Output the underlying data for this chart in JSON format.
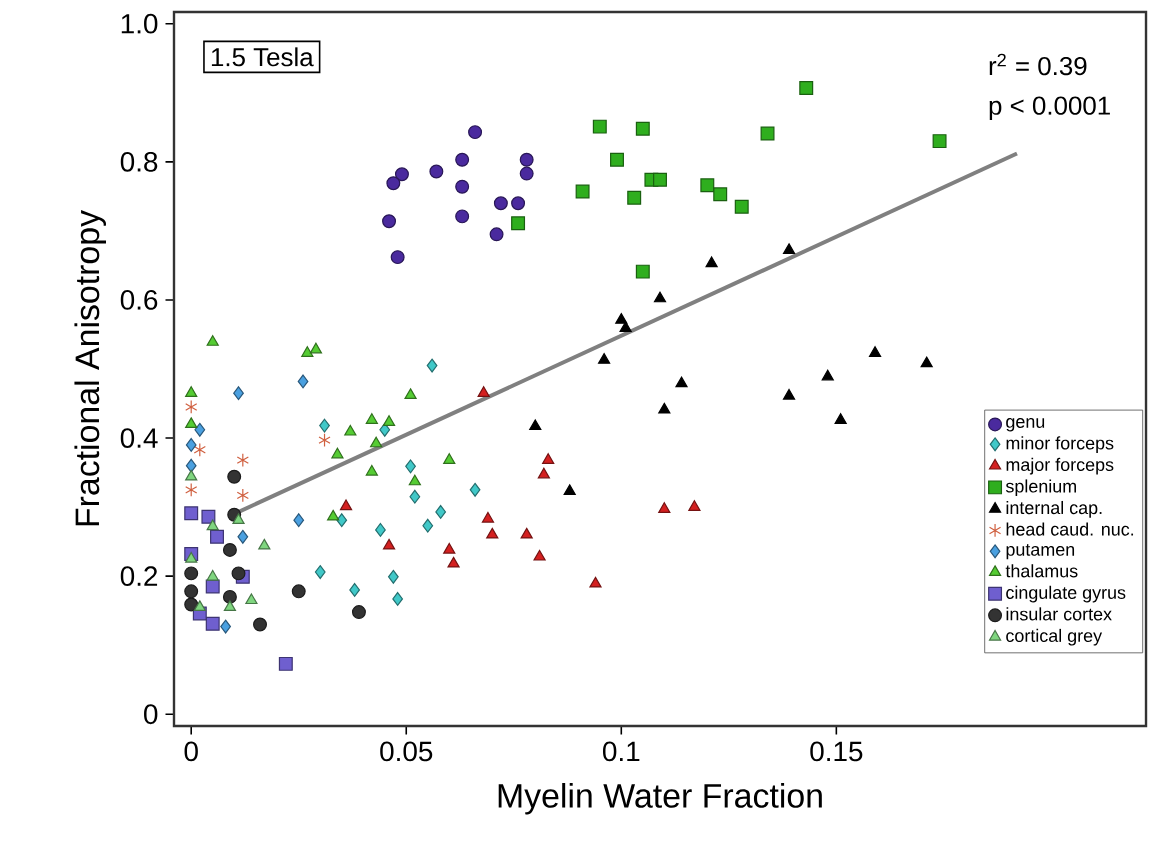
{
  "chart_data": {
    "type": "scatter",
    "xlabel": "Myelin Water Fraction",
    "ylabel": "Fractional Anisotropy",
    "xlim": [
      -0.004,
      0.222
    ],
    "ylim": [
      -0.017,
      1.017
    ],
    "xticks": [
      0,
      0.05,
      0.1,
      0.15
    ],
    "yticks": [
      0,
      0.2,
      0.4,
      0.6,
      0.8,
      {
        "value": 1.0,
        "label": "1.0"
      }
    ],
    "grid": false,
    "legend": "bottom right",
    "annotations": [
      "1.5 Tesla",
      "r$^{2}$ = 0.39",
      "p < 0.0001"
    ],
    "series": [
      {
        "name": "genu",
        "color": "#4a2a9e",
        "marker": "circle",
        "x": [
          0.066,
          0.049,
          0.047,
          0.057,
          0.063,
          0.063,
          0.078,
          0.078,
          0.046,
          0.063,
          0.072,
          0.076,
          0.071,
          0.048
        ],
        "values": [
          0.843,
          0.782,
          0.769,
          0.786,
          0.803,
          0.764,
          0.803,
          0.783,
          0.714,
          0.721,
          0.74,
          0.74,
          0.695,
          0.662
        ]
      },
      {
        "name": "minor forceps",
        "color": "#40c8c8",
        "marker": "diamond",
        "x": [
          0.056,
          0.031,
          0.045,
          0.051,
          0.052,
          0.058,
          0.055,
          0.066,
          0.035,
          0.044,
          0.03,
          0.038,
          0.047,
          0.048
        ],
        "values": [
          0.505,
          0.418,
          0.412,
          0.359,
          0.315,
          0.293,
          0.273,
          0.325,
          0.281,
          0.267,
          0.206,
          0.18,
          0.199,
          0.167
        ]
      },
      {
        "name": "major forceps",
        "color": "#d42020",
        "marker": "triangle",
        "x": [
          0.068,
          0.083,
          0.082,
          0.036,
          0.046,
          0.06,
          0.061,
          0.069,
          0.07,
          0.078,
          0.081,
          0.094,
          0.11,
          0.117
        ],
        "values": [
          0.465,
          0.368,
          0.347,
          0.301,
          0.244,
          0.238,
          0.218,
          0.283,
          0.26,
          0.26,
          0.228,
          0.189,
          0.297,
          0.3
        ]
      },
      {
        "name": "splenium",
        "color": "#2fae1e",
        "marker": "square",
        "x": [
          0.095,
          0.105,
          0.099,
          0.091,
          0.103,
          0.107,
          0.109,
          0.12,
          0.123,
          0.128,
          0.134,
          0.143,
          0.174,
          0.105,
          0.076
        ],
        "values": [
          0.851,
          0.848,
          0.803,
          0.757,
          0.748,
          0.774,
          0.774,
          0.766,
          0.753,
          0.735,
          0.841,
          0.907,
          0.83,
          0.641,
          0.711
        ]
      },
      {
        "name": "internal cap.",
        "color": "#000000",
        "marker": "triangle",
        "x": [
          0.121,
          0.139,
          0.109,
          0.1,
          0.101,
          0.096,
          0.114,
          0.148,
          0.159,
          0.171,
          0.139,
          0.11,
          0.151,
          0.08,
          0.088
        ],
        "values": [
          0.653,
          0.672,
          0.602,
          0.571,
          0.559,
          0.513,
          0.479,
          0.489,
          0.523,
          0.508,
          0.461,
          0.441,
          0.426,
          0.417,
          0.323
        ]
      },
      {
        "name": "head caud. nuc.",
        "color": "#d06040",
        "marker": "cross",
        "x": [
          0,
          0.002,
          0,
          0.012,
          0.012,
          0.031
        ],
        "values": [
          0.445,
          0.383,
          0.325,
          0.368,
          0.317,
          0.397
        ]
      },
      {
        "name": "putamen",
        "color": "#4aa0e0",
        "marker": "diamond",
        "x": [
          0.011,
          0.026,
          0.025,
          0.002,
          0,
          0,
          0.012,
          0.008
        ],
        "values": [
          0.465,
          0.482,
          0.281,
          0.412,
          0.39,
          0.36,
          0.257,
          0.127
        ]
      },
      {
        "name": "thalamus",
        "color": "#55cc33",
        "marker": "triangle",
        "x": [
          0.005,
          0.027,
          0.029,
          0,
          0,
          0.051,
          0.037,
          0.042,
          0.046,
          0.043,
          0.034,
          0.042,
          0.052,
          0.06,
          0.033
        ],
        "values": [
          0.539,
          0.523,
          0.528,
          0.465,
          0.42,
          0.462,
          0.409,
          0.426,
          0.423,
          0.392,
          0.376,
          0.351,
          0.337,
          0.368,
          0.286
        ]
      },
      {
        "name": "cingulate gyrus",
        "color": "#6f5fcf",
        "marker": "square",
        "x": [
          0,
          0.004,
          0.006,
          0,
          0.012,
          0.005,
          0.005,
          0.022,
          0.002
        ],
        "values": [
          0.291,
          0.286,
          0.257,
          0.232,
          0.199,
          0.185,
          0.131,
          0.073,
          0.146
        ]
      },
      {
        "name": "insular cortex",
        "color": "#333333",
        "marker": "circle",
        "x": [
          0.01,
          0.01,
          0.009,
          0.011,
          0,
          0,
          0,
          0.009,
          0.016,
          0.025,
          0.039
        ],
        "values": [
          0.344,
          0.289,
          0.238,
          0.204,
          0.204,
          0.178,
          0.159,
          0.17,
          0.13,
          0.178,
          0.148
        ]
      },
      {
        "name": "cortical grey",
        "color": "#7fd67f",
        "marker": "triangle",
        "x": [
          0.017,
          0.011,
          0.005,
          0,
          0,
          0.005,
          0.014,
          0.009,
          0.002
        ],
        "values": [
          0.244,
          0.281,
          0.272,
          0.344,
          0.225,
          0.199,
          0.165,
          0.155,
          0.155
        ]
      },
      {
        "type": "line",
        "color": "#808080",
        "marker": "none",
        "x": [
          0.011,
          0.192
        ],
        "values": [
          0.293,
          0.812
        ]
      }
    ]
  }
}
